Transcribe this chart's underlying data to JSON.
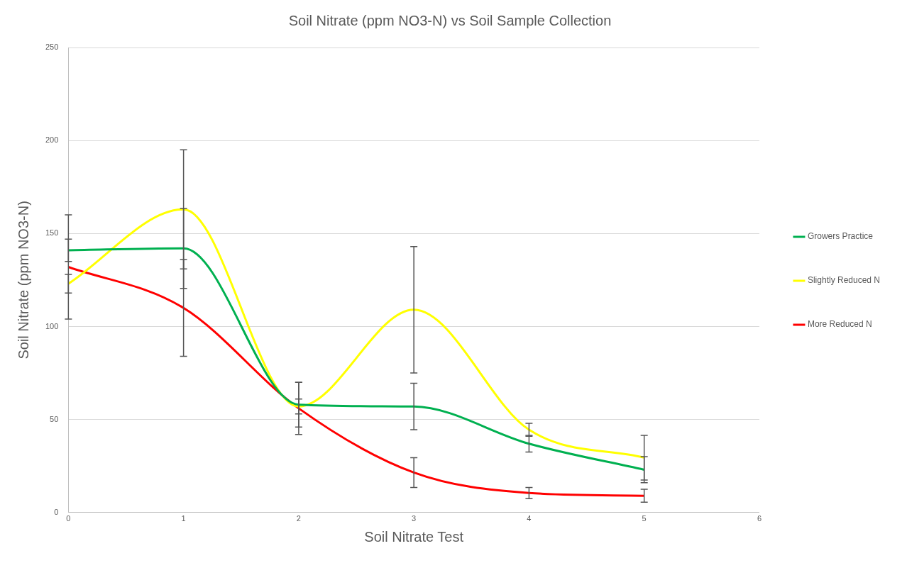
{
  "chart_data": {
    "type": "line",
    "title": "Soil Nitrate (ppm NO3-N) vs Soil Sample Collection",
    "xlabel": "Soil Nitrate Test",
    "ylabel": "Soil Nitrate (ppm NO3-N)",
    "x": [
      0,
      1,
      2,
      3,
      4,
      5
    ],
    "series": [
      {
        "name": "Growers Practice",
        "color": "#00b050",
        "values": [
          141,
          142,
          58,
          57,
          37,
          23
        ],
        "errors": [
          6,
          21.5,
          12,
          12.5,
          4.5,
          7
        ]
      },
      {
        "name": "Slightly Reduced N",
        "color": "#ffff00",
        "values": [
          123,
          163,
          57,
          109,
          44.5,
          29.5
        ],
        "errors": [
          5,
          32,
          4,
          34,
          3.5,
          12
        ]
      },
      {
        "name": "More Reduced N",
        "color": "#ff0000",
        "values": [
          132,
          110,
          56,
          21.5,
          10.5,
          9
        ],
        "errors": [
          28,
          26,
          14,
          8,
          3,
          3.5
        ]
      }
    ],
    "xlim": [
      0,
      6
    ],
    "xticks": [
      0,
      1,
      2,
      3,
      4,
      5,
      6
    ],
    "ylim": [
      0,
      250
    ],
    "yticks": [
      0,
      50,
      100,
      150,
      200,
      250
    ],
    "grid": "y",
    "legend": "right",
    "marker": "none",
    "line_style": "solid"
  }
}
